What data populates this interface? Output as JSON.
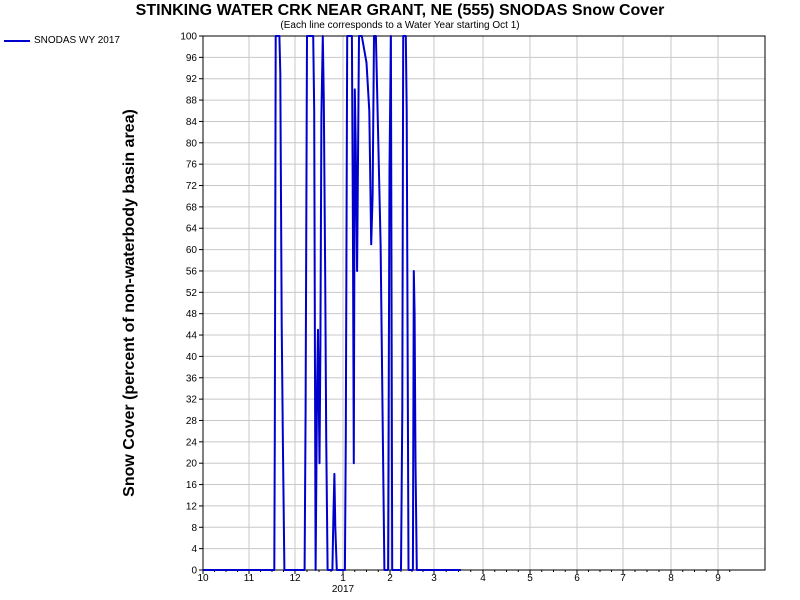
{
  "chart_data": {
    "type": "line",
    "title": "STINKING WATER CRK NEAR GRANT, NE (555) SNODAS Snow Cover",
    "subtitle": "(Each line corresponds to a Water Year starting Oct 1)",
    "ylabel": "Snow Cover (percent of non-waterbody basin area)",
    "xlabel": "",
    "year_label": "2017",
    "legend_position": "top-left",
    "grid": true,
    "ylim": [
      0,
      100
    ],
    "y_ticks": [
      "0",
      "4",
      "8",
      "12",
      "16",
      "20",
      "24",
      "28",
      "32",
      "36",
      "40",
      "44",
      "48",
      "52",
      "56",
      "60",
      "64",
      "68",
      "72",
      "76",
      "80",
      "84",
      "88",
      "92",
      "96",
      "100"
    ],
    "x_ticks": [
      {
        "m": 0,
        "label": "10"
      },
      {
        "m": 1,
        "label": "11"
      },
      {
        "m": 2,
        "label": "12"
      },
      {
        "m": 3,
        "label": "1"
      },
      {
        "m": 4,
        "label": "2"
      },
      {
        "m": 5,
        "label": "3"
      },
      {
        "m": 6,
        "label": "4"
      },
      {
        "m": 7,
        "label": "5"
      },
      {
        "m": 8,
        "label": "6"
      },
      {
        "m": 9,
        "label": "7"
      },
      {
        "m": 10,
        "label": "8"
      },
      {
        "m": 11,
        "label": "9"
      }
    ],
    "series": [
      {
        "name": "SNODAS WY 2017",
        "color": "#0000cc",
        "points": [
          [
            0.0,
            0
          ],
          [
            0.95,
            0
          ],
          [
            1.55,
            0
          ],
          [
            1.56,
            25
          ],
          [
            1.58,
            100
          ],
          [
            1.66,
            100
          ],
          [
            1.68,
            93
          ],
          [
            1.71,
            46
          ],
          [
            1.74,
            22
          ],
          [
            1.77,
            0
          ],
          [
            2.2,
            0
          ],
          [
            2.22,
            30
          ],
          [
            2.25,
            100
          ],
          [
            2.38,
            100
          ],
          [
            2.4,
            86
          ],
          [
            2.43,
            0
          ],
          [
            2.46,
            35
          ],
          [
            2.48,
            45
          ],
          [
            2.51,
            20
          ],
          [
            2.53,
            42
          ],
          [
            2.55,
            85
          ],
          [
            2.58,
            100
          ],
          [
            2.6,
            88
          ],
          [
            2.63,
            55
          ],
          [
            2.65,
            25
          ],
          [
            2.68,
            0
          ],
          [
            2.78,
            0
          ],
          [
            2.8,
            10
          ],
          [
            2.82,
            18
          ],
          [
            2.84,
            8
          ],
          [
            2.87,
            0
          ],
          [
            3.04,
            0
          ],
          [
            3.06,
            25
          ],
          [
            3.09,
            100
          ],
          [
            3.19,
            100
          ],
          [
            3.21,
            65
          ],
          [
            3.23,
            20
          ],
          [
            3.25,
            90
          ],
          [
            3.27,
            80
          ],
          [
            3.3,
            56
          ],
          [
            3.34,
            100
          ],
          [
            3.4,
            100
          ],
          [
            3.5,
            95
          ],
          [
            3.56,
            86
          ],
          [
            3.6,
            61
          ],
          [
            3.63,
            70
          ],
          [
            3.66,
            100
          ],
          [
            3.7,
            100
          ],
          [
            3.8,
            61
          ],
          [
            3.88,
            0
          ],
          [
            3.96,
            0
          ],
          [
            3.99,
            75
          ],
          [
            4.02,
            100
          ],
          [
            4.05,
            0
          ],
          [
            4.25,
            0
          ],
          [
            4.28,
            30
          ],
          [
            4.3,
            100
          ],
          [
            4.36,
            100
          ],
          [
            4.38,
            86
          ],
          [
            4.42,
            0
          ],
          [
            4.52,
            0
          ],
          [
            4.54,
            56
          ],
          [
            4.56,
            48
          ],
          [
            4.58,
            20
          ],
          [
            4.61,
            0
          ],
          [
            5.55,
            0
          ]
        ]
      }
    ]
  }
}
